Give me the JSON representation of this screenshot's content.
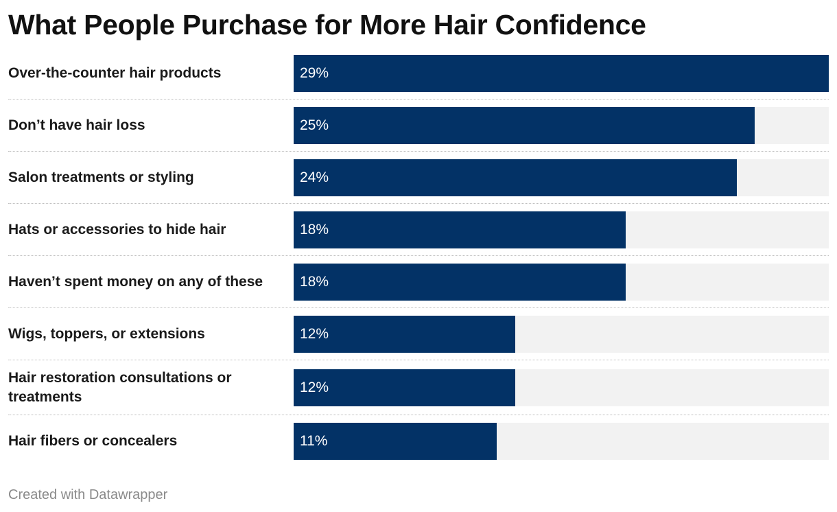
{
  "chart_data": {
    "type": "bar",
    "orientation": "horizontal",
    "title": "What People Purchase for More Hair Confidence",
    "categories": [
      "Over-the-counter hair products",
      "Don’t have hair loss",
      "Salon treatments or styling",
      "Hats or accessories to hide hair",
      "Haven’t spent money on any of these",
      "Wigs, toppers, or extensions",
      "Hair restoration consultations or treatments",
      "Hair fibers or concealers"
    ],
    "values": [
      29,
      25,
      24,
      18,
      18,
      12,
      12,
      11
    ],
    "value_labels": [
      "29%",
      "25%",
      "24%",
      "18%",
      "18%",
      "12%",
      "12%",
      "11%"
    ],
    "unit": "%",
    "xlim": [
      0,
      29
    ],
    "bar_color": "#033266",
    "track_color": "#f2f2f2",
    "grid": false,
    "legend": "none"
  },
  "footer": {
    "credit": "Created with Datawrapper"
  }
}
